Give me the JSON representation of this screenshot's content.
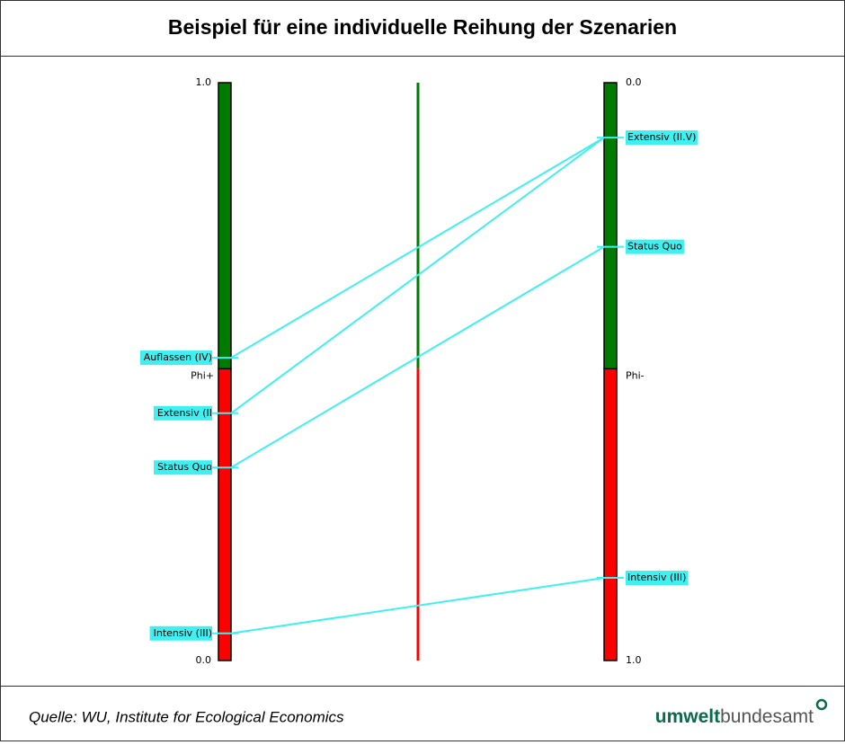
{
  "header": {
    "title": "Beispiel für eine individuelle Reihung der Szenarien"
  },
  "chart_data": {
    "type": "promethee",
    "colors": {
      "upper": "#007a00",
      "lower": "#ff0000",
      "link": "#40f0f0",
      "box": "#40f0f0"
    },
    "left": {
      "label": "Phi+",
      "threshold": 0.505,
      "ylim": [
        0,
        1
      ],
      "inverted": false,
      "ticks": [
        {
          "value": 1,
          "label": "1.0"
        },
        {
          "value": 0,
          "label": "0.0"
        }
      ],
      "items": [
        {
          "name": "Auflassen (IV)",
          "value": 0.524
        },
        {
          "name": "Extensiv (II",
          "value": 0.428
        },
        {
          "name": "Status Quo",
          "value": 0.334
        },
        {
          "name": "Intensiv (III)",
          "value": 0.047
        }
      ]
    },
    "right": {
      "label": "Phi-",
      "threshold": 0.495,
      "ylim": [
        0,
        1
      ],
      "inverted": true,
      "ticks": [
        {
          "value": 0,
          "label": "0.0"
        },
        {
          "value": 1,
          "label": "1.0"
        }
      ],
      "items": [
        {
          "name": "Extensiv (II.V)",
          "value": 0.095
        },
        {
          "name": "Status Quo",
          "value": 0.284
        },
        {
          "name": "Intensiv (III)",
          "value": 0.857
        }
      ]
    },
    "links": [
      [
        0,
        0
      ],
      [
        1,
        0
      ],
      [
        2,
        1
      ],
      [
        3,
        2
      ]
    ]
  },
  "footer": {
    "source": "Quelle: WU, Institute for Ecological Economics",
    "logo_bold": "umwelt",
    "logo_rest": "bundesamt"
  }
}
